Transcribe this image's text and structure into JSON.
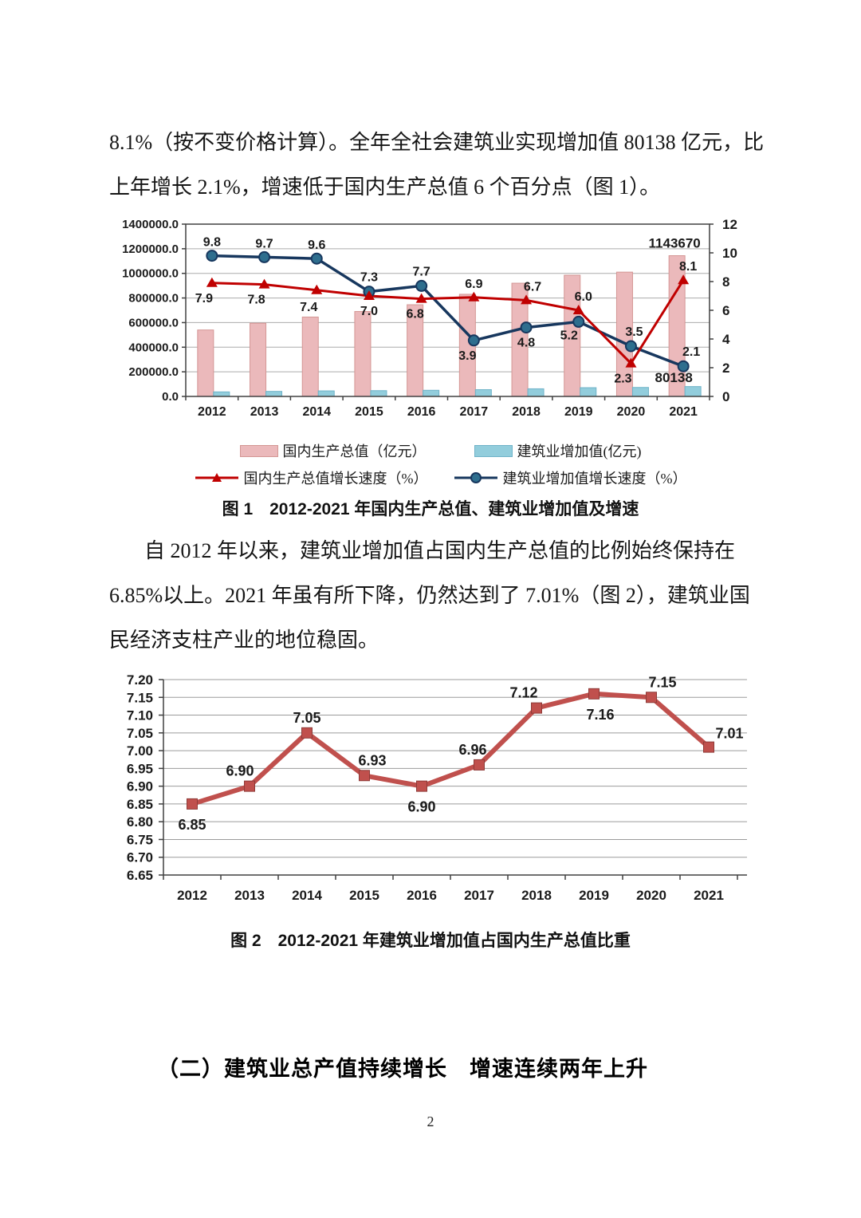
{
  "page": {
    "number": "2"
  },
  "paragraphs": {
    "p1": {
      "line1": "8.1%（按不变价格计算）。全年全社会建筑业实现增加值 80138 亿元，比",
      "line2": "上年增长 2.1%，增速低于国内生产总值 6 个百分点（图 1）。"
    },
    "p2": {
      "line1": "自 2012 年以来，建筑业增加值占国内生产总值的比例始终保持在",
      "line2": "6.85%以上。2021 年虽有所下降，仍然达到了 7.01%（图 2），建筑业国",
      "line3": "民经济支柱产业的地位稳固。"
    }
  },
  "figure1": {
    "caption": "图 1　2012-2021 年国内生产总值、建筑业增加值及增速"
  },
  "figure2": {
    "caption": "图 2　2012-2021 年建筑业增加值占国内生产总值比重"
  },
  "section_heading": "（二）建筑业总产值持续增长　增速连续两年上升",
  "chart_data": [
    {
      "type": "bar",
      "subtype": "combo-bar-line-dual-axis",
      "title": "图 1 2012-2021 年国内生产总值、建筑业增加值及增速",
      "categories": [
        "2012",
        "2013",
        "2014",
        "2015",
        "2016",
        "2017",
        "2018",
        "2019",
        "2020",
        "2021"
      ],
      "series": [
        {
          "name": "国内生产总值（亿元）",
          "type": "bar",
          "axis": "left",
          "color": "#EBB9BB",
          "border": "#D49694",
          "values": [
            540000,
            595000,
            645000,
            690000,
            745000,
            830000,
            920000,
            985000,
            1010000,
            1143670
          ]
        },
        {
          "name": "建筑业增加值(亿元)",
          "type": "bar",
          "axis": "left",
          "color": "#92CDDC",
          "border": "#6FB3C8",
          "values": [
            37000,
            41000,
            45000,
            47000,
            50000,
            55000,
            62000,
            71000,
            73000,
            80138
          ]
        },
        {
          "name": "国内生产总值增长速度（%）",
          "type": "line",
          "axis": "right",
          "color": "#C00000",
          "marker": "triangle",
          "values": [
            7.9,
            7.8,
            7.4,
            7.0,
            6.8,
            6.9,
            6.7,
            6.0,
            2.3,
            8.1
          ]
        },
        {
          "name": "建筑业增加值增长速度（%）",
          "type": "line",
          "axis": "right",
          "color": "#17375E",
          "marker": "circle",
          "marker_fill": "#2E6E8E",
          "values": [
            9.8,
            9.7,
            9.6,
            7.3,
            7.7,
            3.9,
            4.8,
            5.2,
            3.5,
            2.1
          ]
        }
      ],
      "left_axis": {
        "min": 0,
        "max": 1400000,
        "step": 200000,
        "tick_format": "one_decimal"
      },
      "right_axis": {
        "min": 0,
        "max": 12,
        "step": 2
      },
      "annotations": [
        {
          "text": "1143670",
          "target": "gdp-bar-2021"
        },
        {
          "text": "80138",
          "target": "construction-bar-2021"
        }
      ],
      "grid": "horizontal",
      "legend_position": "bottom"
    },
    {
      "type": "line",
      "title": "图 2 2012-2021 年建筑业增加值占国内生产总值比重",
      "categories": [
        "2012",
        "2013",
        "2014",
        "2015",
        "2016",
        "2017",
        "2018",
        "2019",
        "2020",
        "2021"
      ],
      "values": [
        6.85,
        6.9,
        7.05,
        6.93,
        6.9,
        6.96,
        7.12,
        7.16,
        7.15,
        7.01
      ],
      "color": "#C0504D",
      "marker": "square",
      "marker_border": "#8E3B38",
      "ylim": [
        6.65,
        7.2
      ],
      "ystep": 0.05,
      "grid": "horizontal",
      "legend_position": "none"
    }
  ]
}
